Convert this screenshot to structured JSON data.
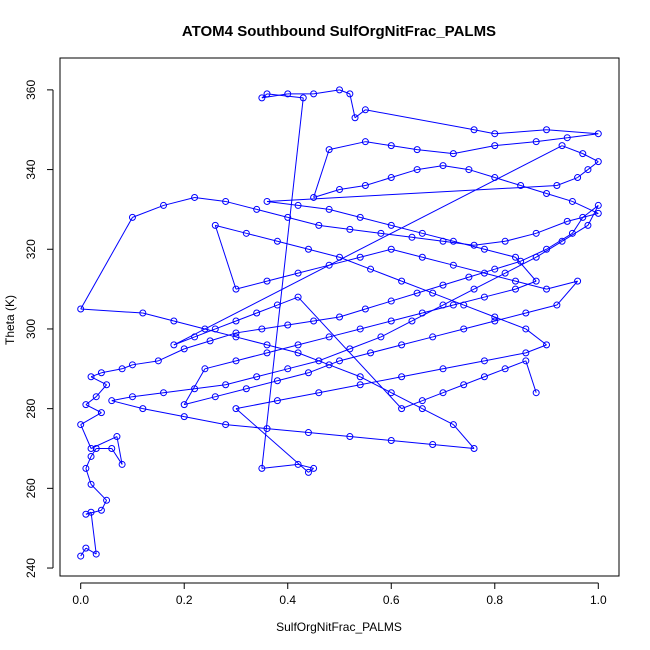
{
  "chart_data": {
    "type": "scatter",
    "title": "ATOM4 Southbound SulfOrgNitFrac_PALMS",
    "xlabel": "SulfOrgNitFrac_PALMS",
    "ylabel": "Theta (K)",
    "xlim": [
      -0.04,
      1.04
    ],
    "ylim": [
      238,
      368
    ],
    "x_ticks": [
      0,
      0.2,
      0.4,
      0.6,
      0.8,
      1
    ],
    "x_tick_labels": [
      "0.0",
      "0.2",
      "0.4",
      "0.6",
      "0.8",
      "1.0"
    ],
    "y_ticks": [
      240,
      260,
      280,
      300,
      320,
      340,
      360
    ],
    "y_tick_labels": [
      "240",
      "260",
      "280",
      "300",
      "320",
      "340",
      "360"
    ],
    "grid": false,
    "marker": "open-circle",
    "connected": true,
    "series": [
      {
        "color": "#0000ff",
        "points": [
          [
            0.0,
            243
          ],
          [
            0.01,
            245
          ],
          [
            0.03,
            243.5
          ],
          [
            0.02,
            254
          ],
          [
            0.01,
            253.5
          ],
          [
            0.04,
            254.5
          ],
          [
            0.05,
            257
          ],
          [
            0.02,
            261
          ],
          [
            0.01,
            265
          ],
          [
            0.02,
            268
          ],
          [
            0.03,
            270
          ],
          [
            0.06,
            270
          ],
          [
            0.08,
            266
          ],
          [
            0.07,
            273
          ],
          [
            0.02,
            270
          ],
          [
            0.0,
            276
          ],
          [
            0.04,
            279
          ],
          [
            0.01,
            281
          ],
          [
            0.03,
            283
          ],
          [
            0.05,
            286
          ],
          [
            0.02,
            288
          ],
          [
            0.04,
            289
          ],
          [
            0.08,
            290
          ],
          [
            0.1,
            291
          ],
          [
            0.15,
            292
          ],
          [
            0.2,
            295
          ],
          [
            0.25,
            297
          ],
          [
            0.3,
            299
          ],
          [
            0.35,
            300
          ],
          [
            0.4,
            301
          ],
          [
            0.45,
            302
          ],
          [
            0.5,
            303
          ],
          [
            0.55,
            305
          ],
          [
            0.6,
            307
          ],
          [
            0.65,
            309
          ],
          [
            0.7,
            311
          ],
          [
            0.75,
            313
          ],
          [
            0.8,
            315
          ],
          [
            0.85,
            317
          ],
          [
            0.9,
            320
          ],
          [
            0.95,
            324
          ],
          [
            0.97,
            328
          ],
          [
            1.0,
            331
          ],
          [
            0.98,
            326
          ],
          [
            0.93,
            322
          ],
          [
            0.88,
            318
          ],
          [
            0.82,
            314
          ],
          [
            0.76,
            310
          ],
          [
            0.7,
            306
          ],
          [
            0.64,
            302
          ],
          [
            0.58,
            298
          ],
          [
            0.52,
            295
          ],
          [
            0.46,
            292
          ],
          [
            0.4,
            290
          ],
          [
            0.34,
            288
          ],
          [
            0.28,
            286
          ],
          [
            0.22,
            285
          ],
          [
            0.16,
            284
          ],
          [
            0.1,
            283
          ],
          [
            0.06,
            282
          ],
          [
            0.12,
            280
          ],
          [
            0.2,
            278
          ],
          [
            0.28,
            276
          ],
          [
            0.36,
            275
          ],
          [
            0.44,
            274
          ],
          [
            0.52,
            273
          ],
          [
            0.6,
            272
          ],
          [
            0.68,
            271
          ],
          [
            0.76,
            270
          ],
          [
            0.72,
            276
          ],
          [
            0.66,
            280
          ],
          [
            0.6,
            284
          ],
          [
            0.54,
            288
          ],
          [
            0.48,
            291
          ],
          [
            0.42,
            294
          ],
          [
            0.36,
            296
          ],
          [
            0.3,
            298
          ],
          [
            0.24,
            300
          ],
          [
            0.18,
            302
          ],
          [
            0.12,
            304
          ],
          [
            0.0,
            305
          ],
          [
            0.1,
            328
          ],
          [
            0.16,
            331
          ],
          [
            0.22,
            333
          ],
          [
            0.28,
            332
          ],
          [
            0.34,
            330
          ],
          [
            0.4,
            328
          ],
          [
            0.46,
            326
          ],
          [
            0.52,
            325
          ],
          [
            0.58,
            324
          ],
          [
            0.64,
            323
          ],
          [
            0.7,
            322
          ],
          [
            0.76,
            321
          ],
          [
            0.82,
            322
          ],
          [
            0.88,
            324
          ],
          [
            0.94,
            327
          ],
          [
            1.0,
            329
          ],
          [
            0.95,
            332
          ],
          [
            0.9,
            334
          ],
          [
            0.85,
            336
          ],
          [
            0.8,
            338
          ],
          [
            0.75,
            340
          ],
          [
            0.7,
            341
          ],
          [
            0.65,
            340
          ],
          [
            0.6,
            338
          ],
          [
            0.55,
            336
          ],
          [
            0.5,
            335
          ],
          [
            0.45,
            333
          ],
          [
            0.48,
            345
          ],
          [
            0.55,
            347
          ],
          [
            0.6,
            346
          ],
          [
            0.65,
            345
          ],
          [
            0.72,
            344
          ],
          [
            0.8,
            346
          ],
          [
            0.88,
            347
          ],
          [
            0.94,
            348
          ],
          [
            1.0,
            349
          ],
          [
            0.9,
            350
          ],
          [
            0.8,
            349
          ],
          [
            0.76,
            350
          ],
          [
            0.55,
            355
          ],
          [
            0.53,
            353
          ],
          [
            0.52,
            359
          ],
          [
            0.5,
            360
          ],
          [
            0.45,
            359
          ],
          [
            0.4,
            359
          ],
          [
            0.35,
            358
          ],
          [
            0.36,
            359
          ],
          [
            0.43,
            358
          ],
          [
            0.35,
            265
          ],
          [
            0.42,
            266
          ],
          [
            0.45,
            265
          ],
          [
            0.44,
            264
          ],
          [
            0.3,
            280
          ],
          [
            0.38,
            282
          ],
          [
            0.46,
            284
          ],
          [
            0.54,
            286
          ],
          [
            0.62,
            288
          ],
          [
            0.7,
            290
          ],
          [
            0.78,
            292
          ],
          [
            0.86,
            294
          ],
          [
            0.9,
            296
          ],
          [
            0.86,
            300
          ],
          [
            0.8,
            303
          ],
          [
            0.74,
            306
          ],
          [
            0.68,
            309
          ],
          [
            0.62,
            312
          ],
          [
            0.56,
            315
          ],
          [
            0.5,
            318
          ],
          [
            0.44,
            320
          ],
          [
            0.38,
            322
          ],
          [
            0.32,
            324
          ],
          [
            0.26,
            326
          ],
          [
            0.3,
            310
          ],
          [
            0.36,
            312
          ],
          [
            0.42,
            314
          ],
          [
            0.48,
            316
          ],
          [
            0.54,
            318
          ],
          [
            0.6,
            320
          ],
          [
            0.66,
            318
          ],
          [
            0.72,
            316
          ],
          [
            0.78,
            314
          ],
          [
            0.84,
            312
          ],
          [
            0.9,
            310
          ],
          [
            0.96,
            312
          ],
          [
            0.92,
            306
          ],
          [
            0.86,
            304
          ],
          [
            0.8,
            302
          ],
          [
            0.74,
            300
          ],
          [
            0.68,
            298
          ],
          [
            0.62,
            296
          ],
          [
            0.56,
            294
          ],
          [
            0.5,
            292
          ],
          [
            0.44,
            289
          ],
          [
            0.38,
            287
          ],
          [
            0.32,
            285
          ],
          [
            0.26,
            283
          ],
          [
            0.2,
            281
          ],
          [
            0.24,
            290
          ],
          [
            0.3,
            292
          ],
          [
            0.36,
            294
          ],
          [
            0.42,
            296
          ],
          [
            0.48,
            298
          ],
          [
            0.54,
            300
          ],
          [
            0.6,
            302
          ],
          [
            0.66,
            304
          ],
          [
            0.72,
            306
          ],
          [
            0.78,
            308
          ],
          [
            0.84,
            310
          ],
          [
            0.88,
            312
          ],
          [
            0.84,
            318
          ],
          [
            0.78,
            320
          ],
          [
            0.72,
            322
          ],
          [
            0.66,
            324
          ],
          [
            0.6,
            326
          ],
          [
            0.54,
            328
          ],
          [
            0.48,
            330
          ],
          [
            0.42,
            331
          ],
          [
            0.36,
            332
          ],
          [
            0.92,
            336
          ],
          [
            0.96,
            338
          ],
          [
            0.98,
            340
          ],
          [
            1.0,
            342
          ],
          [
            0.97,
            344
          ],
          [
            0.93,
            346
          ],
          [
            0.18,
            296
          ],
          [
            0.22,
            298
          ],
          [
            0.26,
            300
          ],
          [
            0.3,
            302
          ],
          [
            0.34,
            304
          ],
          [
            0.38,
            306
          ],
          [
            0.42,
            308
          ],
          [
            0.62,
            280
          ],
          [
            0.66,
            282
          ],
          [
            0.7,
            284
          ],
          [
            0.74,
            286
          ],
          [
            0.78,
            288
          ],
          [
            0.82,
            290
          ],
          [
            0.86,
            292
          ],
          [
            0.88,
            284
          ]
        ]
      }
    ]
  }
}
